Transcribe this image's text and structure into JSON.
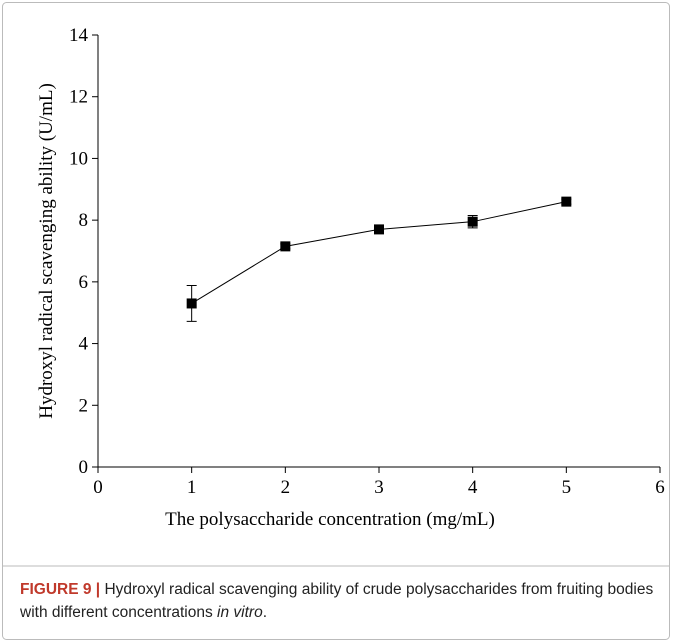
{
  "chart_data": {
    "type": "line",
    "xlabel": "The polysaccharide concentration (mg/mL)",
    "ylabel": "Hydroxyl radical scavenging ability (U/mL)",
    "x": [
      1,
      2,
      3,
      4,
      5
    ],
    "series": [
      {
        "color": "#000000",
        "values": [
          5.3,
          7.15,
          7.7,
          7.95,
          8.6
        ],
        "errors": [
          0.58,
          0.08,
          0.08,
          0.2,
          0.08
        ]
      }
    ],
    "xlim": [
      0,
      6
    ],
    "xticks": [
      0,
      1,
      2,
      3,
      4,
      5,
      6
    ],
    "ylim": [
      0,
      14
    ],
    "yticks": [
      0,
      2,
      4,
      6,
      8,
      10,
      12,
      14
    ],
    "grid": false
  },
  "caption": {
    "label": "FIGURE 9 |",
    "text": " Hydroxyl radical scavenging ability of crude polysaccharides from fruiting bodies with different concentrations ",
    "emphasis": "in vitro",
    "end": "."
  }
}
